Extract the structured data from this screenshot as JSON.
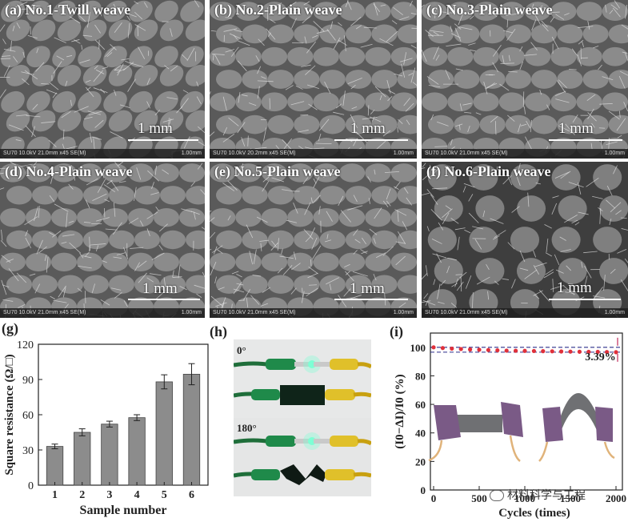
{
  "sem_panels": [
    {
      "letter": "(a)",
      "title": "No.1-Twill weave",
      "scale": "1 mm",
      "footer_left": "SU70 10.0kV 21.0mm x45 SE(M)",
      "footer_right": "1.00mm"
    },
    {
      "letter": "(b)",
      "title": "No.2-Plain weave",
      "scale": "1 mm",
      "footer_left": "SU70 10.0kV 20.2mm x45 SE(M)",
      "footer_right": "1.00mm"
    },
    {
      "letter": "(c)",
      "title": "No.3-Plain weave",
      "scale": "1 mm",
      "footer_left": "SU70 10.0kV 21.0mm x45 SE(M)",
      "footer_right": "1.00mm"
    },
    {
      "letter": "(d)",
      "title": "No.4-Plain weave",
      "scale": "1 mm",
      "footer_left": "SU70 10.0kV 21.0mm x45 SE(M)",
      "footer_right": "1.00mm"
    },
    {
      "letter": "(e)",
      "title": "No.5-Plain weave",
      "scale": "1 mm",
      "footer_left": "SU70 10.0kV 21.0mm x45 SE(M)",
      "footer_right": "1.00mm"
    },
    {
      "letter": "(f)",
      "title": "No.6-Plain weave",
      "scale": "1 mm",
      "footer_left": "SU70 10.0kV 21.0mm x45 SE(M)",
      "footer_right": "1.00mm"
    }
  ],
  "panel_labels": {
    "g": "(g)",
    "h": "(h)",
    "i": "(i)"
  },
  "photo_h": {
    "angle_top": "0°",
    "angle_bottom": "180°"
  },
  "chart_data": [
    {
      "type": "bar",
      "panel": "(g)",
      "categories": [
        "1",
        "2",
        "3",
        "4",
        "5",
        "6"
      ],
      "values": [
        33,
        45,
        52,
        57.5,
        88,
        94.5
      ],
      "errors": [
        2,
        3,
        2.5,
        2.5,
        6,
        9
      ],
      "xlabel": "Sample number",
      "ylabel": "Square resistance (Ω/□)",
      "ylim": [
        0,
        120
      ],
      "yticks": [
        0,
        30,
        60,
        90,
        120
      ],
      "bar_color": "#8c8c8c"
    },
    {
      "type": "scatter",
      "panel": "(i)",
      "x": [
        0,
        100,
        200,
        300,
        400,
        500,
        600,
        700,
        800,
        900,
        1000,
        1100,
        1200,
        1300,
        1400,
        1500,
        1600,
        1700,
        1800,
        1900,
        2000
      ],
      "y": [
        100,
        99.5,
        99.1,
        98.8,
        98.5,
        98.3,
        98.1,
        97.9,
        97.7,
        97.6,
        97.5,
        97.4,
        97.3,
        97.2,
        97.1,
        97.0,
        96.9,
        96.8,
        96.8,
        96.7,
        96.61
      ],
      "reference_line": 100,
      "annotation": "3.39%",
      "xlabel": "Cycles (times)",
      "ylabel": "(I0−ΔI)/I0 (%)",
      "xlim": [
        0,
        2000
      ],
      "ylim": [
        0,
        110
      ],
      "xticks": [
        "0",
        "500",
        "1000",
        "1500",
        "2000"
      ],
      "yticks": [
        0,
        20,
        40,
        60,
        80,
        100
      ],
      "marker_color": "#e0303a",
      "reference_color": "#2c2f8a"
    }
  ],
  "watermark": "材料科学与工程"
}
